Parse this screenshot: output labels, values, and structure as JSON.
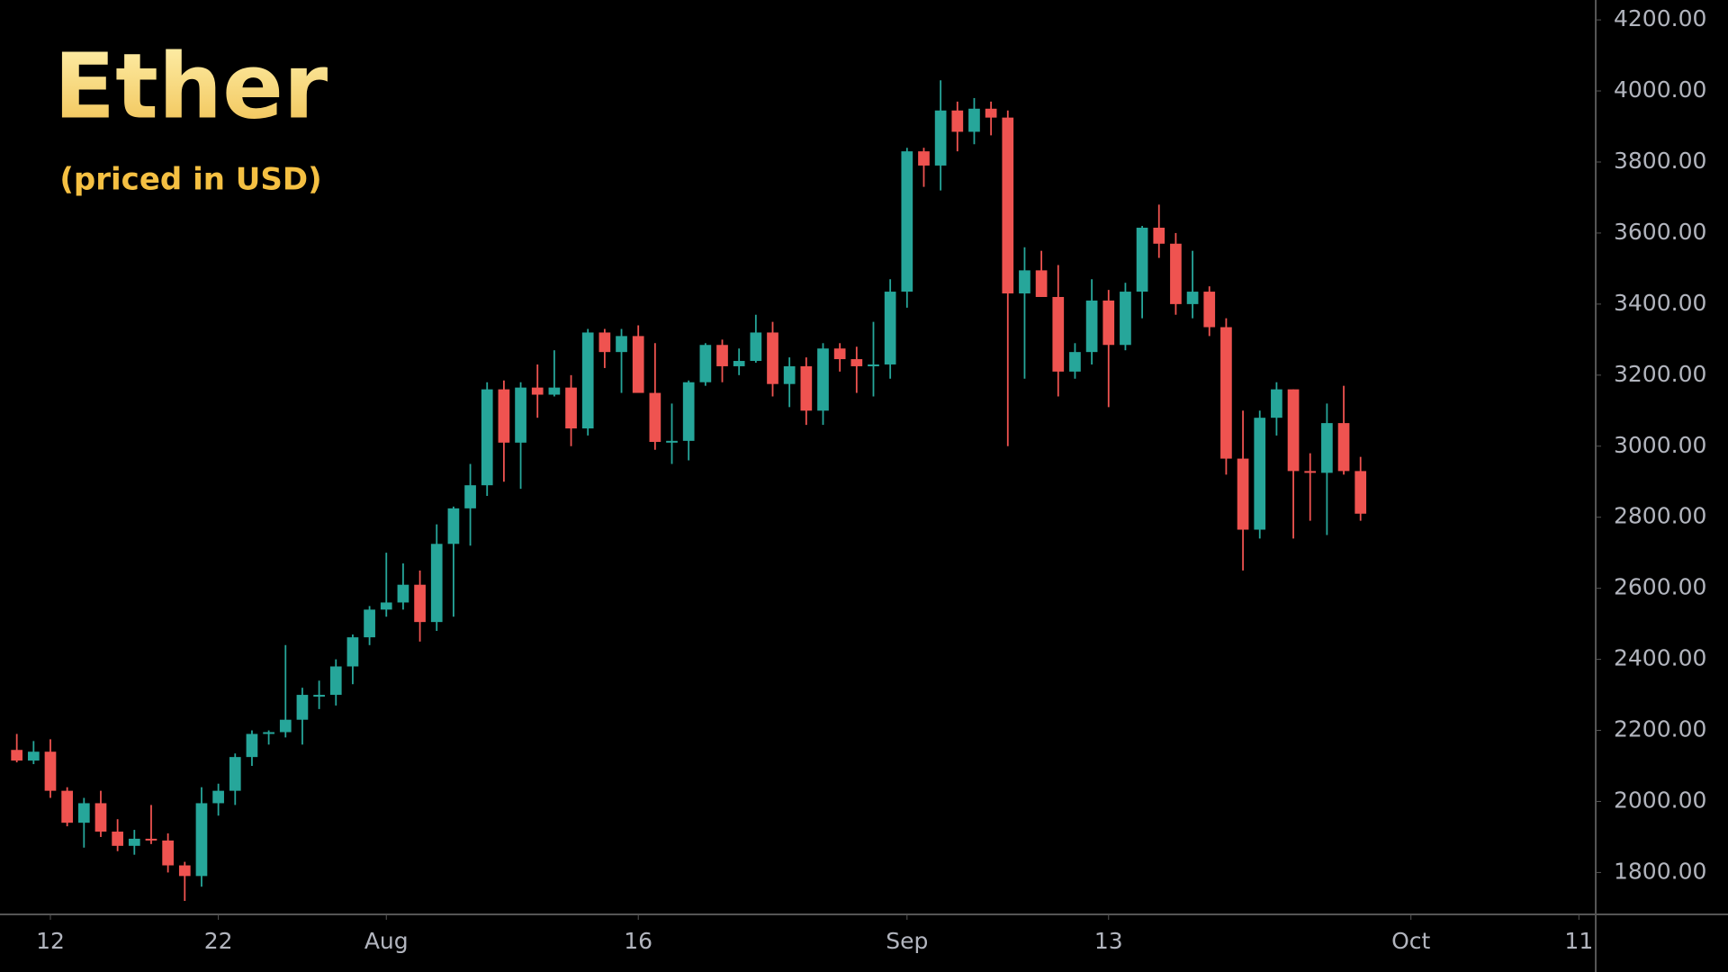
{
  "chart_data": {
    "type": "candlestick",
    "title": "Ether",
    "subtitle": "(priced in USD)",
    "x": [
      "07-10",
      "07-11",
      "07-12",
      "07-13",
      "07-14",
      "07-15",
      "07-16",
      "07-17",
      "07-18",
      "07-19",
      "07-20",
      "07-21",
      "07-22",
      "07-23",
      "07-24",
      "07-25",
      "07-26",
      "07-27",
      "07-28",
      "07-29",
      "07-30",
      "07-31",
      "08-01",
      "08-02",
      "08-03",
      "08-04",
      "08-05",
      "08-06",
      "08-07",
      "08-08",
      "08-09",
      "08-10",
      "08-11",
      "08-12",
      "08-13",
      "08-14",
      "08-15",
      "08-16",
      "08-17",
      "08-18",
      "08-19",
      "08-20",
      "08-21",
      "08-22",
      "08-23",
      "08-24",
      "08-25",
      "08-26",
      "08-27",
      "08-28",
      "08-29",
      "08-30",
      "08-31",
      "09-01",
      "09-02",
      "09-03",
      "09-04",
      "09-05",
      "09-06",
      "09-07",
      "09-08",
      "09-09",
      "09-10",
      "09-11",
      "09-12",
      "09-13",
      "09-14",
      "09-15",
      "09-16",
      "09-17",
      "09-18",
      "09-19",
      "09-20",
      "09-21",
      "09-22",
      "09-23",
      "09-24",
      "09-25",
      "09-26",
      "09-27",
      "09-28"
    ],
    "open": [
      2145,
      2115,
      2140,
      2030,
      1940,
      1995,
      1915,
      1875,
      1895,
      1890,
      1820,
      1790,
      1995,
      2030,
      2125,
      2190,
      2195,
      2230,
      2300,
      2300,
      2380,
      2462,
      2540,
      2560,
      2610,
      2505,
      2725,
      2825,
      2890,
      3160,
      3010,
      3165,
      3145,
      3165,
      3050,
      3320,
      3265,
      3310,
      3150,
      3012,
      3015,
      3180,
      3285,
      3225,
      3240,
      3320,
      3175,
      3225,
      3100,
      3275,
      3245,
      3225,
      3230,
      3435,
      3830,
      3790,
      3945,
      3885,
      3950,
      3925,
      3430,
      3495,
      3420,
      3210,
      3265,
      3410,
      3285,
      3435,
      3615,
      3570,
      3400,
      3435,
      3335,
      2965,
      2765,
      3080,
      3160,
      2930,
      2925,
      3065,
      2930
    ],
    "high": [
      2190,
      2170,
      2175,
      2040,
      2010,
      2030,
      1950,
      1920,
      1990,
      1910,
      1830,
      2040,
      2050,
      2135,
      2200,
      2200,
      2440,
      2320,
      2340,
      2400,
      2470,
      2550,
      2700,
      2670,
      2650,
      2780,
      2830,
      2950,
      3180,
      3185,
      3180,
      3230,
      3270,
      3200,
      3330,
      3330,
      3330,
      3340,
      3290,
      3120,
      3185,
      3290,
      3300,
      3275,
      3370,
      3350,
      3250,
      3250,
      3290,
      3290,
      3280,
      3350,
      3470,
      3840,
      3840,
      4030,
      3970,
      3980,
      3970,
      3945,
      3560,
      3550,
      3510,
      3290,
      3470,
      3440,
      3460,
      3620,
      3680,
      3600,
      3550,
      3450,
      3360,
      3100,
      3100,
      3180,
      3160,
      2980,
      3120,
      3170,
      2970
    ],
    "low": [
      2110,
      2105,
      2010,
      1930,
      1870,
      1900,
      1860,
      1850,
      1880,
      1800,
      1720,
      1760,
      1960,
      1990,
      2100,
      2160,
      2180,
      2160,
      2260,
      2270,
      2330,
      2440,
      2520,
      2540,
      2450,
      2480,
      2520,
      2720,
      2860,
      2900,
      2880,
      3080,
      3140,
      3000,
      3030,
      3220,
      3150,
      3150,
      2990,
      2950,
      2960,
      3170,
      3180,
      3200,
      3235,
      3140,
      3110,
      3060,
      3060,
      3210,
      3150,
      3140,
      3190,
      3390,
      3730,
      3720,
      3830,
      3850,
      3875,
      3000,
      3190,
      3420,
      3140,
      3190,
      3230,
      3110,
      3270,
      3360,
      3530,
      3370,
      3360,
      3310,
      2920,
      2650,
      2740,
      3030,
      2740,
      2790,
      2750,
      2920,
      2790
    ],
    "close": [
      2115,
      2140,
      2030,
      1940,
      1995,
      1915,
      1875,
      1895,
      1890,
      1820,
      1790,
      1995,
      2030,
      2125,
      2190,
      2195,
      2230,
      2300,
      2300,
      2380,
      2462,
      2540,
      2560,
      2610,
      2505,
      2725,
      2825,
      2890,
      3160,
      3010,
      3165,
      3145,
      3165,
      3050,
      3320,
      3265,
      3310,
      3150,
      3012,
      3015,
      3180,
      3285,
      3225,
      3240,
      3320,
      3175,
      3225,
      3100,
      3275,
      3245,
      3225,
      3230,
      3435,
      3830,
      3790,
      3945,
      3885,
      3950,
      3925,
      3430,
      3495,
      3420,
      3210,
      3265,
      3410,
      3285,
      3435,
      3615,
      3570,
      3400,
      3435,
      3335,
      2965,
      2765,
      3080,
      3160,
      2930,
      2925,
      3065,
      2930,
      2810
    ],
    "up_color": "#26a69a",
    "down_color": "#ef5350",
    "xlim": [
      "07-09",
      "10-12"
    ],
    "xticks": [
      {
        "value": "07-12",
        "label": "12"
      },
      {
        "value": "07-22",
        "label": "22"
      },
      {
        "value": "08-01",
        "label": "Aug"
      },
      {
        "value": "08-16",
        "label": "16"
      },
      {
        "value": "09-01",
        "label": "Sep"
      },
      {
        "value": "09-13",
        "label": "13"
      },
      {
        "value": "10-01",
        "label": "Oct"
      },
      {
        "value": "10-11",
        "label": "11"
      }
    ],
    "ylim": [
      1682,
      4256
    ],
    "yticks": [
      {
        "value": 1800,
        "label": "1800.00"
      },
      {
        "value": 2000,
        "label": "2000.00"
      },
      {
        "value": 2200,
        "label": "2200.00"
      },
      {
        "value": 2400,
        "label": "2400.00"
      },
      {
        "value": 2600,
        "label": "2600.00"
      },
      {
        "value": 2800,
        "label": "2800.00"
      },
      {
        "value": 3000,
        "label": "3000.00"
      },
      {
        "value": 3200,
        "label": "3200.00"
      },
      {
        "value": 3400,
        "label": "3400.00"
      },
      {
        "value": 3600,
        "label": "3600.00"
      },
      {
        "value": 3800,
        "label": "3800.00"
      },
      {
        "value": 4000,
        "label": "4000.00"
      },
      {
        "value": 4200,
        "label": "4200.00"
      }
    ]
  }
}
